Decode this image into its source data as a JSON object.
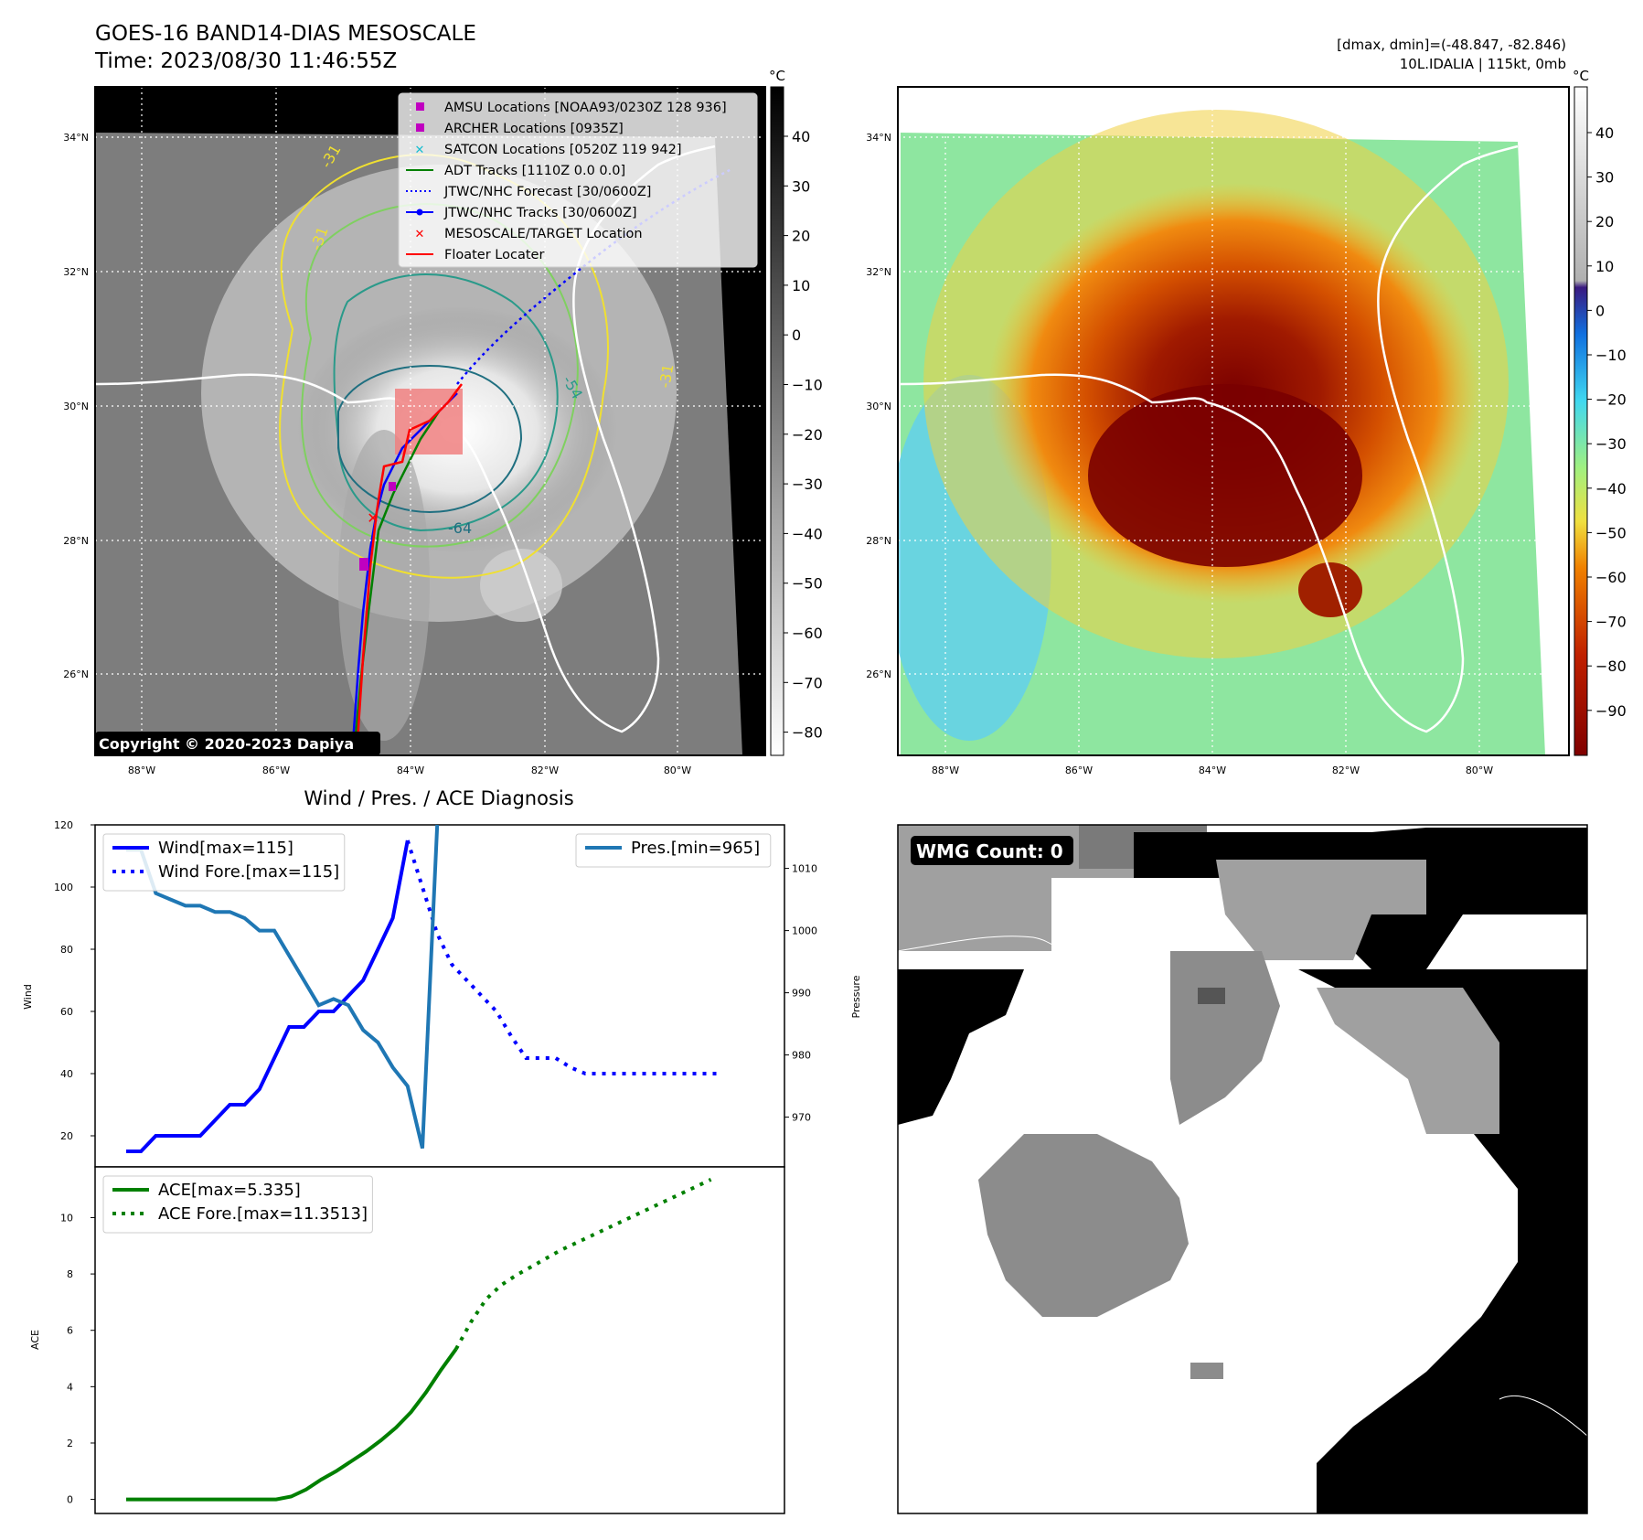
{
  "header": {
    "title": "GOES-16 BAND14-DIAS MESOSCALE",
    "time": "Time: 2023/08/30 11:46:55Z",
    "range_text": "[dmax, dmin]=(-48.847, -82.846)",
    "storm_text": "10L.IDALIA | 115kt, 0mb"
  },
  "copyright": "Copyright © 2020-2023 Dapiya",
  "map_axes": {
    "lat_ticks": [
      "34°N",
      "32°N",
      "30°N",
      "28°N",
      "26°N"
    ],
    "lon_ticks": [
      "88°W",
      "86°W",
      "84°W",
      "82°W",
      "80°W"
    ]
  },
  "colorbar_gray": {
    "unit": "°C",
    "ticks": [
      "40",
      "30",
      "20",
      "10",
      "0",
      "−10",
      "−20",
      "−30",
      "−40",
      "−50",
      "−60",
      "−70",
      "−80"
    ]
  },
  "colorbar_color": {
    "unit": "°C",
    "ticks": [
      "40",
      "30",
      "20",
      "10",
      "0",
      "−10",
      "−20",
      "−30",
      "−40",
      "−50",
      "−60",
      "−70",
      "−80",
      "−90"
    ]
  },
  "contour_labels": [
    "-31",
    "-31",
    "-54",
    "-31",
    "-64"
  ],
  "legend_map": [
    {
      "label": "AMSU Locations [NOAA93/0230Z 128 936]",
      "marker": "square",
      "color": "#c000c0"
    },
    {
      "label": "ARCHER Locations [0935Z]",
      "marker": "square",
      "color": "#c000c0"
    },
    {
      "label": "SATCON Locations [0520Z 119 942]",
      "marker": "x",
      "color": "#17becf"
    },
    {
      "label": "ADT Tracks [1110Z 0.0 0.0]",
      "marker": "line",
      "color": "#008000"
    },
    {
      "label": "JTWC/NHC Forecast [30/0600Z]",
      "marker": "dotted",
      "color": "#0000ff"
    },
    {
      "label": "JTWC/NHC Tracks [30/0600Z]",
      "marker": "line-dot",
      "color": "#0000ff"
    },
    {
      "label": "MESOSCALE/TARGET Location",
      "marker": "x",
      "color": "#ff0000"
    },
    {
      "label": "Floater Locater",
      "marker": "line",
      "color": "#ff0000"
    }
  ],
  "wmg": {
    "label": "WMG Count: 0"
  },
  "chart_data": [
    {
      "type": "line",
      "title": "Wind / Pres. / ACE Diagnosis",
      "ylabel": "Wind",
      "y2label": "Pressure",
      "ylim": [
        10,
        120
      ],
      "y2lim": [
        962,
        1017
      ],
      "yticks": [
        "20",
        "40",
        "60",
        "80",
        "100",
        "120"
      ],
      "y2ticks": [
        "970",
        "980",
        "990",
        "1000",
        "1010"
      ],
      "series": [
        {
          "name": "Wind[max=115]",
          "color": "#0000ff",
          "style": "solid",
          "values": [
            15,
            15,
            20,
            20,
            20,
            20,
            25,
            30,
            30,
            35,
            45,
            55,
            55,
            60,
            60,
            65,
            70,
            80,
            90,
            115
          ]
        },
        {
          "name": "Wind Fore.[max=115]",
          "color": "#0000ff",
          "style": "dotted",
          "offset": 19,
          "values": [
            115,
            100,
            85,
            75,
            70,
            65,
            60,
            52,
            45,
            45,
            45,
            42,
            40,
            40,
            40,
            40,
            40,
            40,
            40,
            40,
            40,
            40
          ]
        },
        {
          "name": "Pres.[min=965]",
          "color": "#1f77b4",
          "style": "solid",
          "axis": "right",
          "values": [
            1013,
            1013,
            1006,
            1005,
            1004,
            1004,
            1003,
            1003,
            1002,
            1000,
            1000,
            996,
            992,
            988,
            989,
            988,
            984,
            982,
            978,
            975,
            965,
            1017
          ]
        }
      ]
    },
    {
      "type": "line",
      "ylabel": "ACE",
      "ylim": [
        -0.5,
        11.8
      ],
      "yticks": [
        "0",
        "2",
        "4",
        "6",
        "8",
        "10"
      ],
      "series": [
        {
          "name": "ACE[max=5.335]",
          "color": "#008000",
          "style": "solid",
          "values": [
            0,
            0,
            0,
            0,
            0,
            0,
            0,
            0,
            0,
            0,
            0,
            0.1,
            0.35,
            0.7,
            1.0,
            1.35,
            1.7,
            2.1,
            2.55,
            3.1,
            3.8,
            4.6,
            5.335
          ]
        },
        {
          "name": "ACE Fore.[max=11.3513]",
          "color": "#008000",
          "style": "dotted",
          "offset": 22,
          "values": [
            5.335,
            6.3,
            7.1,
            7.6,
            7.95,
            8.25,
            8.55,
            8.85,
            9.1,
            9.35,
            9.6,
            9.85,
            10.1,
            10.35,
            10.6,
            10.85,
            11.1,
            11.3513
          ]
        }
      ]
    }
  ]
}
